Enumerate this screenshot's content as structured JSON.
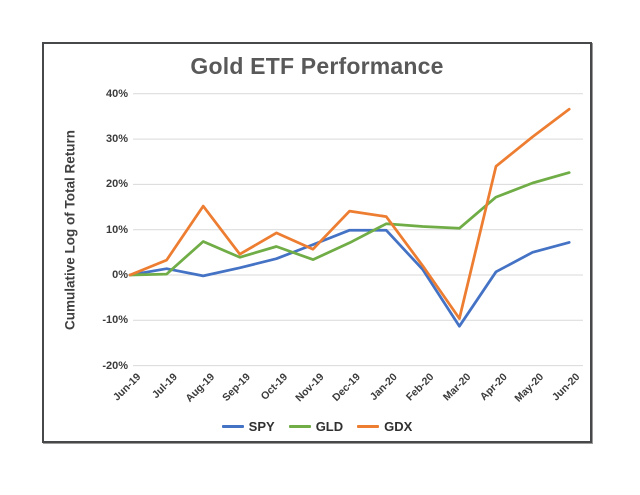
{
  "chart_data": {
    "type": "line",
    "title": "Gold ETF Performance",
    "xlabel": "",
    "ylabel": "Cumulative Log of Total Return",
    "ylim": [
      -20,
      40
    ],
    "grid": "horizontal-only",
    "legend_position": "bottom-center",
    "gridline_color": "#d9d9d9",
    "title_color": "#595959",
    "axis_label_color": "#3b3b3b",
    "frame_color": "#47484a",
    "categories": [
      "Jun-19",
      "Jul-19",
      "Aug-19",
      "Sep-19",
      "Oct-19",
      "Nov-19",
      "Dec-19",
      "Jan-20",
      "Feb-20",
      "Mar-20",
      "Apr-20",
      "May-20",
      "Jun-20"
    ],
    "y_ticks": [
      {
        "label": "40%",
        "value": 40
      },
      {
        "label": "30%",
        "value": 30
      },
      {
        "label": "20%",
        "value": 20
      },
      {
        "label": "10%",
        "value": 10
      },
      {
        "label": "0%",
        "value": 0
      },
      {
        "label": "-10%",
        "value": -10
      },
      {
        "label": "-20%",
        "value": -20
      }
    ],
    "series": [
      {
        "name": "SPY",
        "color": "#4472C4",
        "values": [
          0,
          1.4,
          -0.2,
          1.6,
          3.6,
          6.7,
          9.9,
          9.9,
          1.2,
          -11.3,
          0.7,
          5.0,
          7.2
        ]
      },
      {
        "name": "GLD",
        "color": "#70AD47",
        "values": [
          0,
          0.2,
          7.4,
          3.9,
          6.3,
          3.4,
          7.1,
          11.3,
          10.7,
          10.3,
          17.2,
          20.3,
          22.6
        ]
      },
      {
        "name": "GDX",
        "color": "#ED7D31",
        "values": [
          0,
          3.3,
          15.2,
          4.6,
          9.3,
          5.7,
          14.1,
          12.9,
          2.0,
          -9.6,
          24.0,
          30.5,
          36.6
        ]
      }
    ]
  }
}
